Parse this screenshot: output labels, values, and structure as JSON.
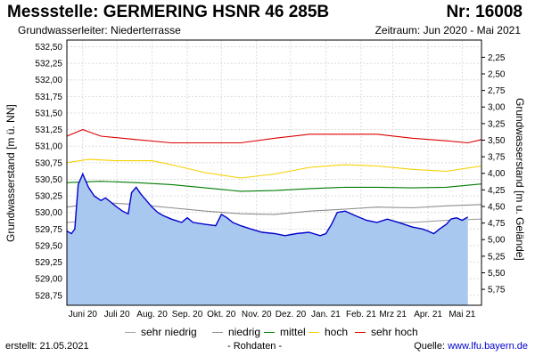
{
  "header": {
    "title": "Messstelle: GERMERING HSNR 46 285B",
    "nr": "Nr: 16008",
    "aquifer": "Grundwasserleiter:   Niederterrasse",
    "period": "Zeitraum: Jun 2020 - Mai 2021"
  },
  "footer": {
    "created": "erstellt:  21.05.2021",
    "raw": "- Rohdaten -",
    "source_label": "Quelle:",
    "source_url": "www.lfu.bayern.de"
  },
  "colors": {
    "area": "#a9c8ef",
    "measured": "#0000cc",
    "sehr_niedrig": "#a0a0a0",
    "niedrig": "#8c8c8c",
    "mittel": "#007a00",
    "hoch": "#f5d000",
    "sehr_hoch": "#dd0000"
  },
  "chart_data": {
    "type": "area",
    "ylabel_left": "Grundwasserstand [m ü. NN]",
    "ylabel_right": "Grundwasserstand [m u. Gelände]",
    "ylim": [
      528.6,
      532.6
    ],
    "ylim_right": [
      5.99,
      1.99
    ],
    "yticks_left": [
      "532,50",
      "532,25",
      "532,00",
      "531,75",
      "531,50",
      "531,25",
      "531,00",
      "530,75",
      "530,50",
      "530,25",
      "530,00",
      "529,75",
      "529,50",
      "529,25",
      "529,00",
      "528,75"
    ],
    "ytick_values_left": [
      532.5,
      532.25,
      532.0,
      531.75,
      531.5,
      531.25,
      531.0,
      530.75,
      530.5,
      530.25,
      530.0,
      529.75,
      529.5,
      529.25,
      529.0,
      528.75
    ],
    "yticks_right": [
      "2,25",
      "2,50",
      "2,75",
      "3,00",
      "3,25",
      "3,50",
      "3,75",
      "4,00",
      "4,25",
      "4,50",
      "4,75",
      "5,00",
      "5,25",
      "5,50",
      "5,75"
    ],
    "ytick_values_right": [
      2.25,
      2.5,
      2.75,
      3.0,
      3.25,
      3.5,
      3.75,
      4.0,
      4.25,
      4.5,
      4.75,
      5.0,
      5.25,
      5.5,
      5.75
    ],
    "xlim": [
      "2020-06-01",
      "2021-06-01"
    ],
    "xticks": [
      "Juni 20",
      "Juli 20",
      "Aug. 20",
      "Sep. 20",
      "Okt. 20",
      "Nov. 20",
      "Dez. 20",
      "Jan. 21",
      "Feb. 21",
      "Mrz 21",
      "Apr. 21",
      "Mai 21"
    ],
    "xtick_dates": [
      "2020-06-15",
      "2020-07-15",
      "2020-08-15",
      "2020-09-15",
      "2020-10-15",
      "2020-11-15",
      "2020-12-15",
      "2021-01-15",
      "2021-02-15",
      "2021-03-15",
      "2021-04-15",
      "2021-05-15"
    ],
    "grid": true,
    "legend_position": "bottom",
    "series": [
      {
        "name": "sehr niedrig",
        "key": "sehr_niedrig",
        "x": [
          "2020-06-01",
          "2020-07-01",
          "2020-08-01",
          "2020-09-01",
          "2020-10-01",
          "2020-11-01",
          "2020-12-01",
          "2021-01-01",
          "2021-01-20",
          "2021-02-01",
          "2021-03-01",
          "2021-04-01",
          "2021-05-01",
          "2021-06-01"
        ],
        "values": [
          529.85,
          529.88,
          529.86,
          529.8,
          529.72,
          529.65,
          529.6,
          529.58,
          529.62,
          529.78,
          529.85,
          529.85,
          529.88,
          529.9
        ]
      },
      {
        "name": "niedrig",
        "key": "niedrig",
        "x": [
          "2020-06-01",
          "2020-07-01",
          "2020-08-01",
          "2020-09-01",
          "2020-10-01",
          "2020-11-01",
          "2020-12-01",
          "2021-01-01",
          "2021-02-01",
          "2021-03-01",
          "2021-04-01",
          "2021-05-01",
          "2021-06-01"
        ],
        "values": [
          530.08,
          530.15,
          530.12,
          530.07,
          530.02,
          529.98,
          529.97,
          530.02,
          530.05,
          530.08,
          530.07,
          530.1,
          530.12
        ]
      },
      {
        "name": "mittel",
        "key": "mittel",
        "x": [
          "2020-06-01",
          "2020-07-01",
          "2020-08-01",
          "2020-09-01",
          "2020-10-01",
          "2020-11-01",
          "2020-12-01",
          "2021-01-01",
          "2021-02-01",
          "2021-03-01",
          "2021-04-01",
          "2021-05-01",
          "2021-06-01"
        ],
        "values": [
          530.45,
          530.47,
          530.45,
          530.42,
          530.37,
          530.32,
          530.33,
          530.36,
          530.38,
          530.38,
          530.37,
          530.38,
          530.43
        ]
      },
      {
        "name": "hoch",
        "key": "hoch",
        "x": [
          "2020-06-01",
          "2020-06-20",
          "2020-07-15",
          "2020-08-15",
          "2020-09-01",
          "2020-10-01",
          "2020-11-01",
          "2020-12-01",
          "2021-01-01",
          "2021-02-01",
          "2021-03-01",
          "2021-04-01",
          "2021-05-01",
          "2021-06-01"
        ],
        "values": [
          530.75,
          530.8,
          530.78,
          530.78,
          530.72,
          530.6,
          530.52,
          530.58,
          530.68,
          530.72,
          530.7,
          530.65,
          530.62,
          530.7
        ]
      },
      {
        "name": "sehr hoch",
        "key": "sehr_hoch",
        "x": [
          "2020-06-01",
          "2020-06-15",
          "2020-07-01",
          "2020-08-01",
          "2020-09-01",
          "2020-10-01",
          "2020-11-01",
          "2020-12-01",
          "2021-01-01",
          "2021-02-01",
          "2021-03-01",
          "2021-04-01",
          "2021-05-01",
          "2021-05-20",
          "2021-06-01"
        ],
        "values": [
          531.15,
          531.25,
          531.15,
          531.1,
          531.05,
          531.05,
          531.05,
          531.12,
          531.18,
          531.18,
          531.18,
          531.12,
          531.08,
          531.05,
          531.1
        ]
      },
      {
        "name": "",
        "key": "measured",
        "x": [
          "2020-06-01",
          "2020-06-05",
          "2020-06-08",
          "2020-06-11",
          "2020-06-15",
          "2020-06-20",
          "2020-06-25",
          "2020-07-01",
          "2020-07-05",
          "2020-07-10",
          "2020-07-15",
          "2020-07-20",
          "2020-07-25",
          "2020-07-28",
          "2020-08-01",
          "2020-08-05",
          "2020-08-10",
          "2020-08-15",
          "2020-08-20",
          "2020-08-25",
          "2020-09-01",
          "2020-09-10",
          "2020-09-15",
          "2020-09-20",
          "2020-10-01",
          "2020-10-10",
          "2020-10-15",
          "2020-10-20",
          "2020-10-25",
          "2020-11-01",
          "2020-11-10",
          "2020-11-20",
          "2020-12-01",
          "2020-12-10",
          "2020-12-20",
          "2020-12-31",
          "2021-01-10",
          "2021-01-15",
          "2021-01-20",
          "2021-01-25",
          "2021-02-01",
          "2021-02-10",
          "2021-02-20",
          "2021-03-01",
          "2021-03-10",
          "2021-03-20",
          "2021-04-01",
          "2021-04-10",
          "2021-04-15",
          "2021-04-20",
          "2021-04-25",
          "2021-05-01",
          "2021-05-05",
          "2021-05-10",
          "2021-05-15",
          "2021-05-20"
        ],
        "values": [
          529.72,
          529.68,
          529.75,
          530.42,
          530.58,
          530.38,
          530.25,
          530.18,
          530.22,
          530.15,
          530.08,
          530.02,
          529.98,
          530.3,
          530.38,
          530.28,
          530.18,
          530.08,
          530.0,
          529.95,
          529.9,
          529.85,
          529.92,
          529.85,
          529.82,
          529.8,
          529.97,
          529.92,
          529.85,
          529.8,
          529.75,
          529.7,
          529.68,
          529.65,
          529.68,
          529.7,
          529.65,
          529.68,
          529.82,
          530.0,
          530.02,
          529.95,
          529.88,
          529.85,
          529.9,
          529.85,
          529.78,
          529.75,
          529.72,
          529.68,
          529.75,
          529.82,
          529.9,
          529.92,
          529.88,
          529.93
        ]
      }
    ]
  },
  "legend": [
    {
      "label": "sehr niedrig",
      "key": "sehr_niedrig"
    },
    {
      "label": "niedrig",
      "key": "niedrig"
    },
    {
      "label": "mittel",
      "key": "mittel"
    },
    {
      "label": "hoch",
      "key": "hoch"
    },
    {
      "label": "sehr hoch",
      "key": "sehr_hoch"
    }
  ]
}
